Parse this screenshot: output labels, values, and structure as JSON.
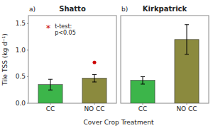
{
  "chart_data": [
    {
      "type": "bar",
      "title": "Shatto",
      "subtitle": "a)",
      "categories": [
        "CC",
        "NO CC"
      ],
      "values": [
        0.35,
        0.47
      ],
      "errors": [
        0.1,
        0.07
      ],
      "colors": [
        "#3cb54a",
        "#8b8a3e"
      ],
      "ylabel": "Tile TSS (kg d⁻¹)",
      "xlabel": "Cover Crop Treatment",
      "ylim": [
        0,
        1.65
      ],
      "yticks": [
        {
          "value": 0.0,
          "label": "0.0"
        },
        0.5,
        {
          "value": 1.0,
          "label": "1.0"
        },
        1.5
      ],
      "points": [
        {
          "x": 1,
          "y": 0.77,
          "color": "#cc0000"
        }
      ],
      "annotations": [
        {
          "text": "*",
          "color": "#cc0000"
        },
        {
          "text": "t-test:\np<0.05"
        }
      ]
    },
    {
      "type": "bar",
      "title": "Kirkpatrick",
      "subtitle": "b)",
      "categories": [
        "CC",
        "NO CC"
      ],
      "values": [
        0.43,
        1.2
      ],
      "errors": [
        0.07,
        0.28
      ],
      "colors": [
        "#3cb54a",
        "#8b8a3e"
      ],
      "ylim": [
        0,
        1.65
      ],
      "tick_labels": "x"
    }
  ]
}
